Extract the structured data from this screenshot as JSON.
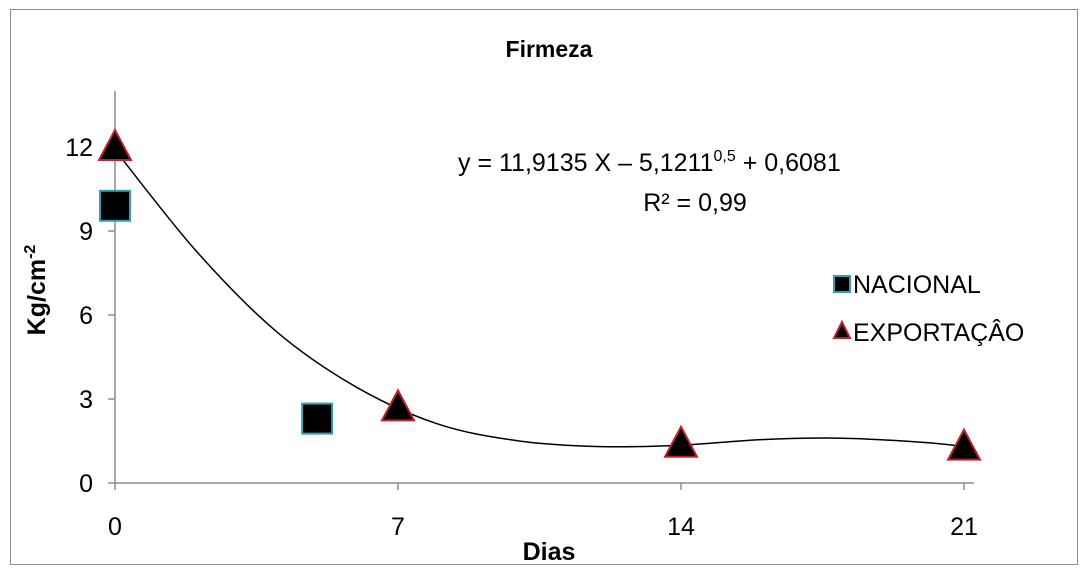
{
  "chart_data": {
    "type": "scatter",
    "title": "Firmeza",
    "xlabel": "Dias",
    "ylabel": "Kg/cm",
    "ylabel_sup": "-2",
    "xticks": [
      "0",
      "7",
      "14",
      "21"
    ],
    "yticks": [
      "0",
      "3",
      "6",
      "9",
      "12"
    ],
    "xlim": [
      0,
      21
    ],
    "ylim": [
      0,
      14
    ],
    "grid": false,
    "legend_position": "right",
    "series": [
      {
        "name": "NACIONAL",
        "marker": "square",
        "fill": "#000000",
        "stroke": "#31a0b4",
        "points": [
          [
            0,
            9.9
          ],
          [
            5,
            2.3
          ]
        ]
      },
      {
        "name": "EXPORTAÇÂO",
        "marker": "triangle",
        "fill": "#000000",
        "stroke": "#c0202a",
        "points": [
          [
            0,
            12.0
          ],
          [
            7,
            2.7
          ],
          [
            14,
            1.4
          ],
          [
            21,
            1.3
          ]
        ]
      }
    ],
    "trendline": {
      "color": "#000000",
      "points": [
        [
          0,
          11.9
        ],
        [
          2,
          8.3
        ],
        [
          4,
          5.4
        ],
        [
          6,
          3.4
        ],
        [
          8,
          2.1
        ],
        [
          10,
          1.5
        ],
        [
          12,
          1.3
        ],
        [
          14,
          1.35
        ],
        [
          16,
          1.55
        ],
        [
          18,
          1.6
        ],
        [
          20,
          1.45
        ],
        [
          21,
          1.3
        ]
      ]
    },
    "annotations": {
      "eq_main": "y = 11,9135 X – 5,1211",
      "eq_sup": "0,5",
      "eq_tail": " + 0,6081",
      "r2": "R² = 0,99"
    }
  }
}
